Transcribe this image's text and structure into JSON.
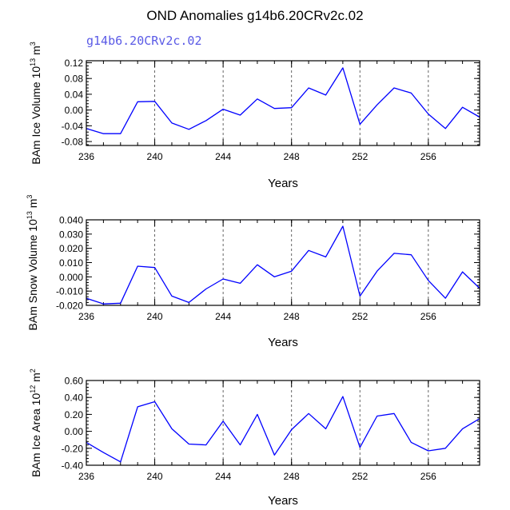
{
  "title": "OND Anomalies g14b6.20CRv2c.02",
  "subtitle": "g14b6.20CRv2c.02",
  "colors": {
    "line": "#0000ff",
    "subtitle": "#5a5ae6",
    "frame": "#000000",
    "refline": "#555555"
  },
  "chart_data": [
    {
      "type": "line",
      "ylabel_parts": [
        "BAm Ice Volume 10",
        "13",
        " m",
        "3"
      ],
      "xlabel": "Years",
      "xlim": [
        236,
        259
      ],
      "ylim": [
        -0.09,
        0.125
      ],
      "yticks": [
        0.12,
        0.08,
        0.04,
        0.0,
        -0.04,
        -0.08
      ],
      "ytick_labels": [
        "0.12",
        "0.08",
        "0.04",
        "0.00",
        "-0.04",
        "-0.08"
      ],
      "xticks": [
        236,
        240,
        244,
        248,
        252,
        256
      ],
      "xtick_labels": [
        "236",
        "240",
        "244",
        "248",
        "252",
        "256"
      ],
      "ref_lines": [
        240,
        244,
        248,
        252,
        256
      ],
      "x": [
        236,
        237,
        238,
        239,
        240,
        241,
        242,
        243,
        244,
        245,
        246,
        247,
        248,
        249,
        250,
        251,
        252,
        253,
        254,
        255,
        256,
        257,
        258,
        259
      ],
      "values": [
        -0.047,
        -0.06,
        -0.06,
        0.021,
        0.022,
        -0.033,
        -0.049,
        -0.027,
        0.002,
        -0.013,
        0.028,
        0.004,
        0.006,
        0.056,
        0.038,
        0.107,
        -0.036,
        0.013,
        0.056,
        0.043,
        -0.01,
        -0.047,
        0.007,
        -0.018
      ]
    },
    {
      "type": "line",
      "ylabel_parts": [
        "BAm Snow Volume 10",
        "13",
        " m",
        "3"
      ],
      "xlabel": "Years",
      "xlim": [
        236,
        259
      ],
      "ylim": [
        -0.02,
        0.04
      ],
      "yticks": [
        0.04,
        0.03,
        0.02,
        0.01,
        0.0,
        -0.01,
        -0.02
      ],
      "ytick_labels": [
        "0.040",
        "0.030",
        "0.020",
        "0.010",
        "0.000",
        "-0.010",
        "-0.020"
      ],
      "xticks": [
        236,
        240,
        244,
        248,
        252,
        256
      ],
      "xtick_labels": [
        "236",
        "240",
        "244",
        "248",
        "252",
        "256"
      ],
      "ref_lines": [
        240,
        244,
        248,
        252,
        256
      ],
      "x": [
        236,
        237,
        238,
        239,
        240,
        241,
        242,
        243,
        244,
        245,
        246,
        247,
        248,
        249,
        250,
        251,
        252,
        253,
        254,
        255,
        256,
        257,
        258,
        259
      ],
      "values": [
        -0.015,
        -0.019,
        -0.0185,
        0.0075,
        0.0065,
        -0.0135,
        -0.018,
        -0.0085,
        -0.0015,
        -0.0045,
        0.0085,
        0.0,
        0.004,
        0.0185,
        0.014,
        0.0355,
        -0.0135,
        0.004,
        0.0165,
        0.0155,
        -0.0025,
        -0.015,
        0.0035,
        -0.008
      ]
    },
    {
      "type": "line",
      "ylabel_parts": [
        "BAm Ice Area 10",
        "12",
        " m",
        "2"
      ],
      "xlabel": "Years",
      "xlim": [
        236,
        259
      ],
      "ylim": [
        -0.4,
        0.6
      ],
      "yticks": [
        0.6,
        0.4,
        0.2,
        0.0,
        -0.2,
        -0.4
      ],
      "ytick_labels": [
        "0.60",
        "0.40",
        "0.20",
        "0.00",
        "-0.20",
        "-0.40"
      ],
      "xticks": [
        236,
        240,
        244,
        248,
        252,
        256
      ],
      "xtick_labels": [
        "236",
        "240",
        "244",
        "248",
        "252",
        "256"
      ],
      "ref_lines": [
        240,
        244,
        248,
        252,
        256
      ],
      "x": [
        236,
        237,
        238,
        239,
        240,
        241,
        242,
        243,
        244,
        245,
        246,
        247,
        248,
        249,
        250,
        251,
        252,
        253,
        254,
        255,
        256,
        257,
        258,
        259
      ],
      "values": [
        -0.13,
        -0.25,
        -0.36,
        0.29,
        0.35,
        0.03,
        -0.15,
        -0.16,
        0.12,
        -0.16,
        0.2,
        -0.28,
        0.02,
        0.21,
        0.03,
        0.41,
        -0.19,
        0.18,
        0.21,
        -0.13,
        -0.23,
        -0.2,
        0.03,
        0.15
      ]
    }
  ]
}
